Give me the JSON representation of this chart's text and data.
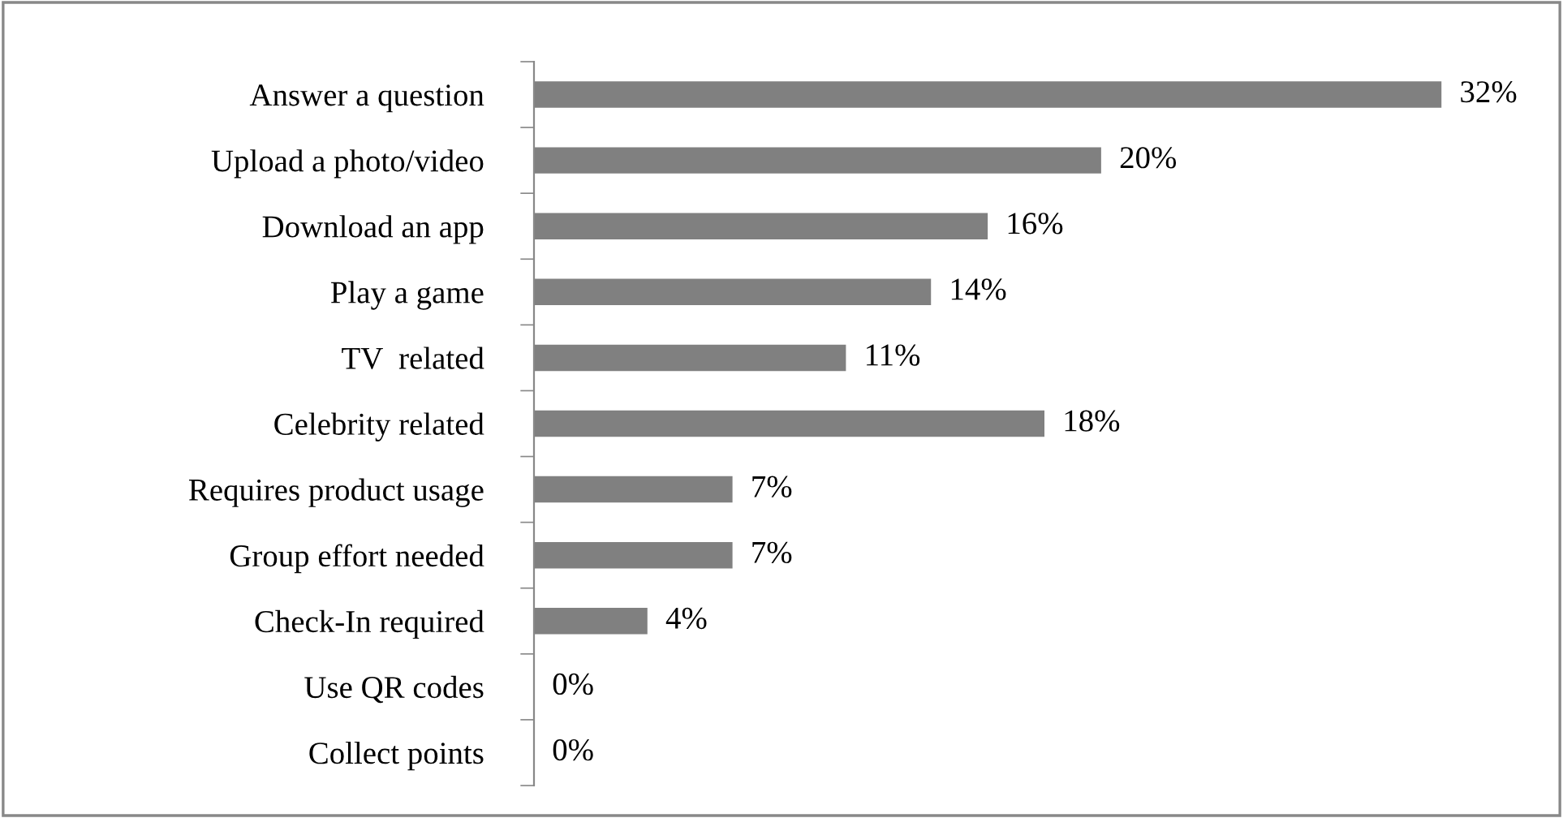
{
  "chart_data": {
    "type": "bar",
    "orientation": "horizontal",
    "categories": [
      "Answer a question",
      "Upload a photo/video",
      "Download an app",
      "Play a game",
      "TV  related",
      "Celebrity related",
      "Requires product usage",
      "Group effort needed",
      "Check-In required",
      "Use QR codes",
      "Collect points"
    ],
    "values": [
      32,
      20,
      16,
      14,
      11,
      18,
      7,
      7,
      4,
      0,
      0
    ],
    "value_labels": [
      "32%",
      "20%",
      "16%",
      "14%",
      "11%",
      "18%",
      "7%",
      "7%",
      "4%",
      "0%",
      "0%"
    ],
    "color": "#808080"
  }
}
